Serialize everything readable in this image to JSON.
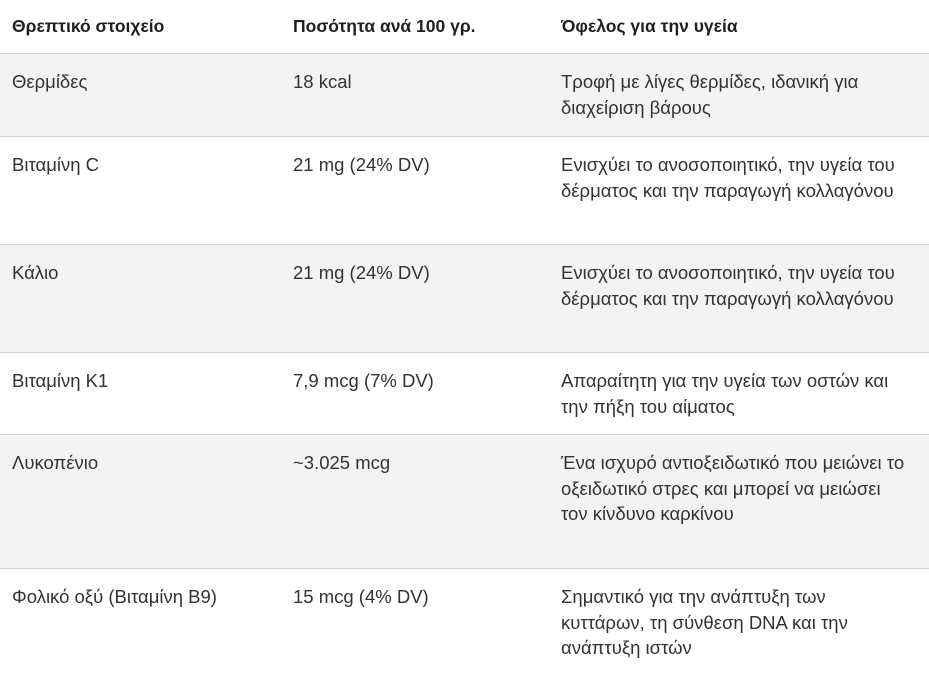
{
  "table": {
    "headers": [
      "Θρεπτικό στοιχείο",
      "Ποσότητα ανά 100 γρ.",
      "Όφελος για την υγεία"
    ],
    "rows": [
      [
        "Θερμίδες",
        "18 kcal",
        "Τροφή με λίγες θερμίδες, ιδανική για διαχείριση βάρους"
      ],
      [
        "Βιταμίνη C",
        "21 mg (24% DV)",
        "Ενισχύει το ανοσοποιητικό, την υγεία του δέρματος και την παραγωγή κολλαγόνου"
      ],
      [
        "Κάλιο",
        "21 mg (24% DV)",
        "Ενισχύει το ανοσοποιητικό, την υγεία του δέρματος και την παραγωγή κολλαγόνου"
      ],
      [
        "Βιταμίνη K1",
        "7,9 mcg (7% DV)",
        "Απαραίτητη για την υγεία των οστών και την πήξη του αίματος"
      ],
      [
        "Λυκοπένιο",
        "~3.025 mcg",
        "Ένα ισχυρό αντιοξειδωτικό που μειώνει το οξειδωτικό στρες και μπορεί να μειώσει τον κίνδυνο καρκίνου"
      ],
      [
        "Φολικό οξύ (Βιταμίνη B9)",
        "15 mcg (4% DV)",
        "Σημαντικό για την ανάπτυξη των κυττάρων, τη σύνθεση DNA και την ανάπτυξη ιστών"
      ]
    ]
  }
}
